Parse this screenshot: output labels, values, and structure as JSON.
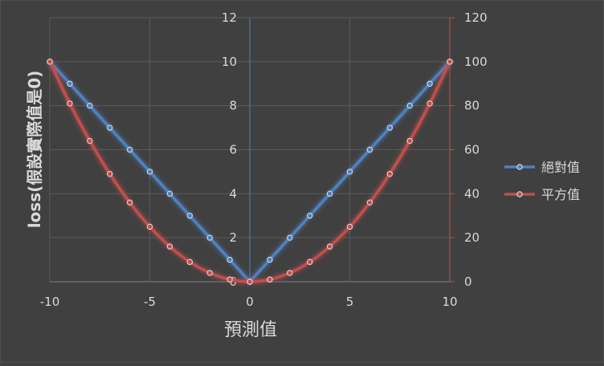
{
  "chart_data": {
    "type": "line",
    "title": "",
    "xlabel": "預測值",
    "ylabel": "loss(假設實際值是0)",
    "x": [
      -10,
      -9,
      -8,
      -7,
      -6,
      -5,
      -4,
      -3,
      -2,
      -1,
      0,
      1,
      2,
      3,
      4,
      5,
      6,
      7,
      8,
      9,
      10
    ],
    "xlim": [
      -10,
      10
    ],
    "xticks": [
      -10,
      -5,
      0,
      5,
      10
    ],
    "ylim_left": [
      0,
      12
    ],
    "yticks_left": [
      0,
      2,
      4,
      6,
      8,
      10,
      12
    ],
    "ylim_right": [
      0,
      120
    ],
    "yticks_right": [
      0,
      20,
      40,
      60,
      80,
      100,
      120
    ],
    "grid": true,
    "legend_position": "right",
    "series": [
      {
        "name": "絕對值",
        "axis": "left",
        "color": "#4f81bd",
        "values": [
          10,
          9,
          8,
          7,
          6,
          5,
          4,
          3,
          2,
          1,
          0,
          1,
          2,
          3,
          4,
          5,
          6,
          7,
          8,
          9,
          10
        ]
      },
      {
        "name": "平方值",
        "axis": "right",
        "color": "#c0504d",
        "values": [
          100,
          81,
          64,
          49,
          36,
          25,
          16,
          9,
          4,
          1,
          0,
          1,
          4,
          9,
          16,
          25,
          36,
          49,
          64,
          81,
          100
        ]
      }
    ]
  }
}
